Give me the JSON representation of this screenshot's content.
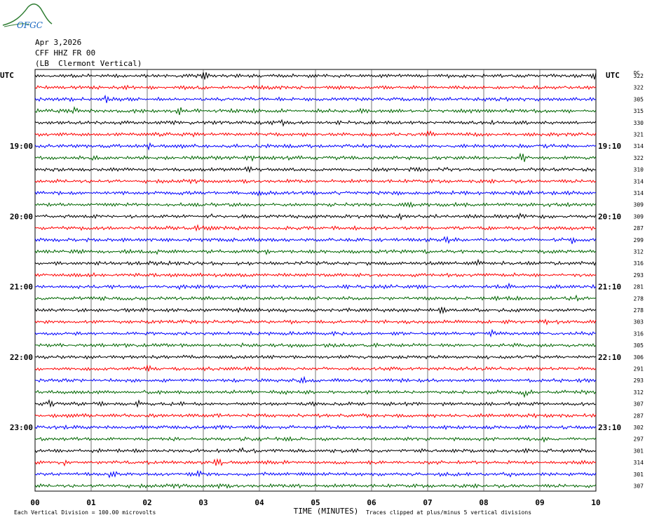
{
  "header": {
    "logo_text": "OFGC",
    "date": "Apr 3,2026",
    "station": "CFF HHZ FR 00",
    "location": "(LB  Clermont Vertical)"
  },
  "left_axis_label": "UTC",
  "right_axis_label": "UTC",
  "dc_label": "DC",
  "left_hours": [
    "19:00",
    "20:00",
    "21:00",
    "22:00",
    "23:00"
  ],
  "right_hours": [
    "19:10",
    "20:10",
    "21:10",
    "22:10",
    "23:10"
  ],
  "dc_values": [
    "322",
    "322",
    "305",
    "315",
    "330",
    "321",
    "314",
    "322",
    "310",
    "314",
    "314",
    "309",
    "309",
    "287",
    "299",
    "312",
    "316",
    "293",
    "281",
    "278",
    "278",
    "303",
    "316",
    "305",
    "306",
    "291",
    "293",
    "312",
    "307",
    "287",
    "302",
    "297",
    "301",
    "314",
    "301",
    "307"
  ],
  "footer": {
    "xlabel": "TIME (MINUTES)",
    "scale_note": "Each Vertical Division =  100.00 microvolts",
    "clip_note": "Traces clipped at plus/minus 5 vertical divisions"
  },
  "colors": {
    "trace_cycle": [
      "#000000",
      "#ff0000",
      "#0000ff",
      "#006600"
    ],
    "grid": "#000000",
    "logo": "#2e7d32"
  },
  "chart_data": {
    "type": "line",
    "title": "CFF HHZ FR 00",
    "xlabel": "TIME (MINUTES)",
    "ylabel": "UTC",
    "x_ticks": [
      "00",
      "01",
      "02",
      "03",
      "04",
      "05",
      "06",
      "07",
      "08",
      "09",
      "10"
    ],
    "xlim": [
      0,
      10
    ],
    "traces_per_hour": 6,
    "trace_count": 36,
    "start_time": "18:00",
    "grid": true
  }
}
